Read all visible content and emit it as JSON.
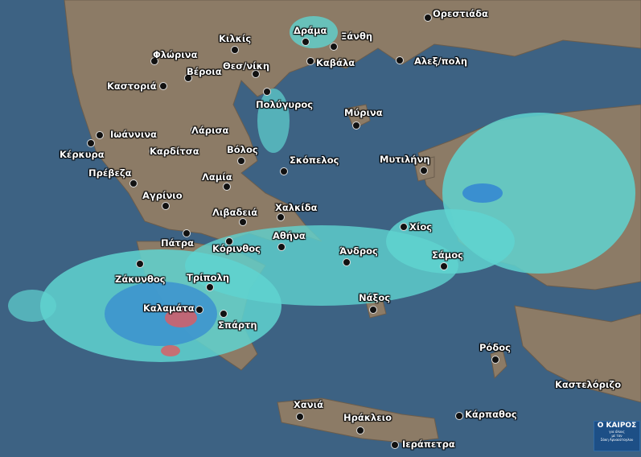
{
  "map": {
    "colors": {
      "sea": "#3d6283",
      "land": "#8c7b66",
      "rain_light": "#5fd3d0",
      "rain_medium": "#3a8fd0",
      "rain_heavy": "#e05a60",
      "border": "#1a1a1a"
    },
    "cities": [
      "Ορεστιάδα",
      "Δράμα",
      "Ξάνθη",
      "Κιλκίς",
      "Φλώρινα",
      "Καβάλα",
      "Αλεξ/πολη",
      "Θεσ/νίκη",
      "Βέροια",
      "Καστοριά",
      "Πολύγυρος",
      "Μύρινα",
      "Ιωάννινα",
      "Λάρισα",
      "Κέρκυρα",
      "Καρδίτσα",
      "Βόλος",
      "Σκόπελος",
      "Μυτιλήνη",
      "Πρέβεζα",
      "Λαμία",
      "Αγρίνιο",
      "Λιβαδειά",
      "Χαλκίδα",
      "Χίος",
      "Αθήνα",
      "Πάτρα",
      "Κόρινθος",
      "Άνδρος",
      "Σάμος",
      "Ζάκυνθος",
      "Τρίπολη",
      "Καλαμάτα",
      "Νάξος",
      "Σπάρτη",
      "Ρόδος",
      "Καστελόριζο",
      "Χανιά",
      "Ηράκλειο",
      "Κάρπαθος",
      "Ιεράπετρα"
    ]
  },
  "logo": {
    "title": "Ο ΚΑΙΡΟΣ",
    "line1": "για όλους",
    "line2": "με τον",
    "line3": "Σάκη Αρναούτογλου"
  }
}
